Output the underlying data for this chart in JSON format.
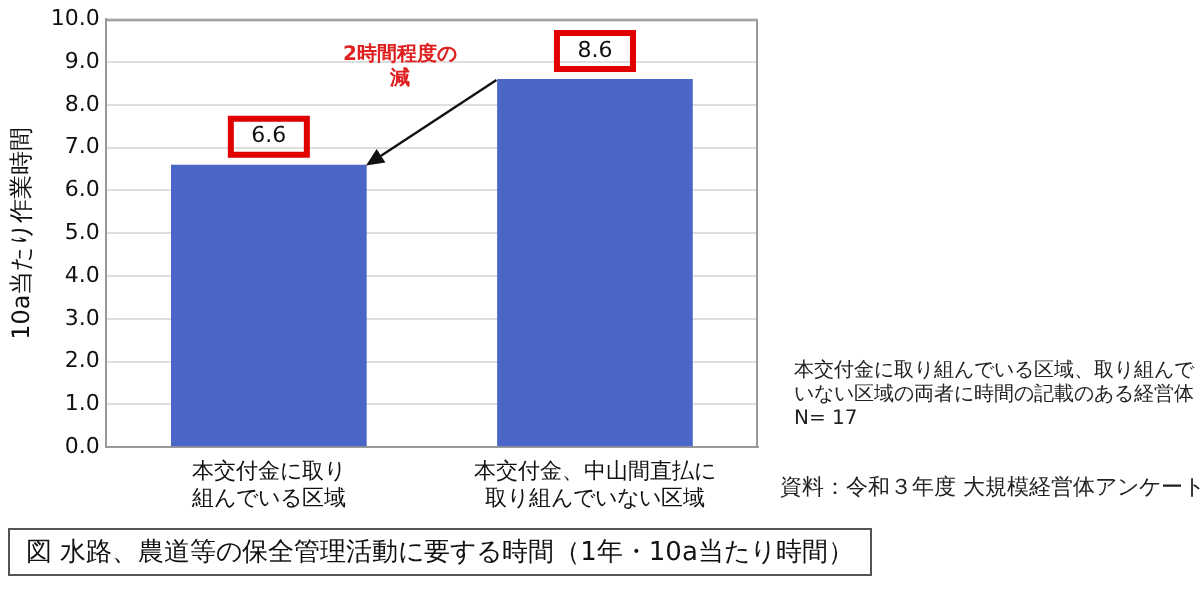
{
  "chart_data": {
    "type": "bar",
    "title": "図  水路、農道等の保全管理活動に要する時間（1年・10a当たり時間）",
    "ylabel": "10a当たり作業時間",
    "categories": [
      "本交付金に取り組んでいる区域",
      "本交付金、中山間直払に取り組んでいない区域"
    ],
    "values": [
      6.6,
      8.6
    ],
    "color": "#4a66c6",
    "data_labels": true,
    "ylim": [
      0,
      10
    ],
    "yticks": [
      {
        "value": 0,
        "label": "0.0"
      },
      {
        "value": 1,
        "label": "1.0"
      },
      {
        "value": 2,
        "label": "2.0"
      },
      {
        "value": 3,
        "label": "3.0"
      },
      {
        "value": 4,
        "label": "4.0"
      },
      {
        "value": 5,
        "label": "5.0"
      },
      {
        "value": 6,
        "label": "6.0"
      },
      {
        "value": 7,
        "label": "7.0"
      },
      {
        "value": 8,
        "label": "8.0"
      },
      {
        "value": 9,
        "label": "9.0"
      },
      {
        "value": 10,
        "label": "10.0"
      }
    ],
    "grid": "y",
    "legend": false,
    "annotations": [
      "2時間程度の減",
      "本交付金に取り組んでいる区域、取り組んでいない区域の両者に時間の記載のある経営体\nN= 17",
      "資料：令和３年度 大規模経営体アンケート"
    ]
  }
}
